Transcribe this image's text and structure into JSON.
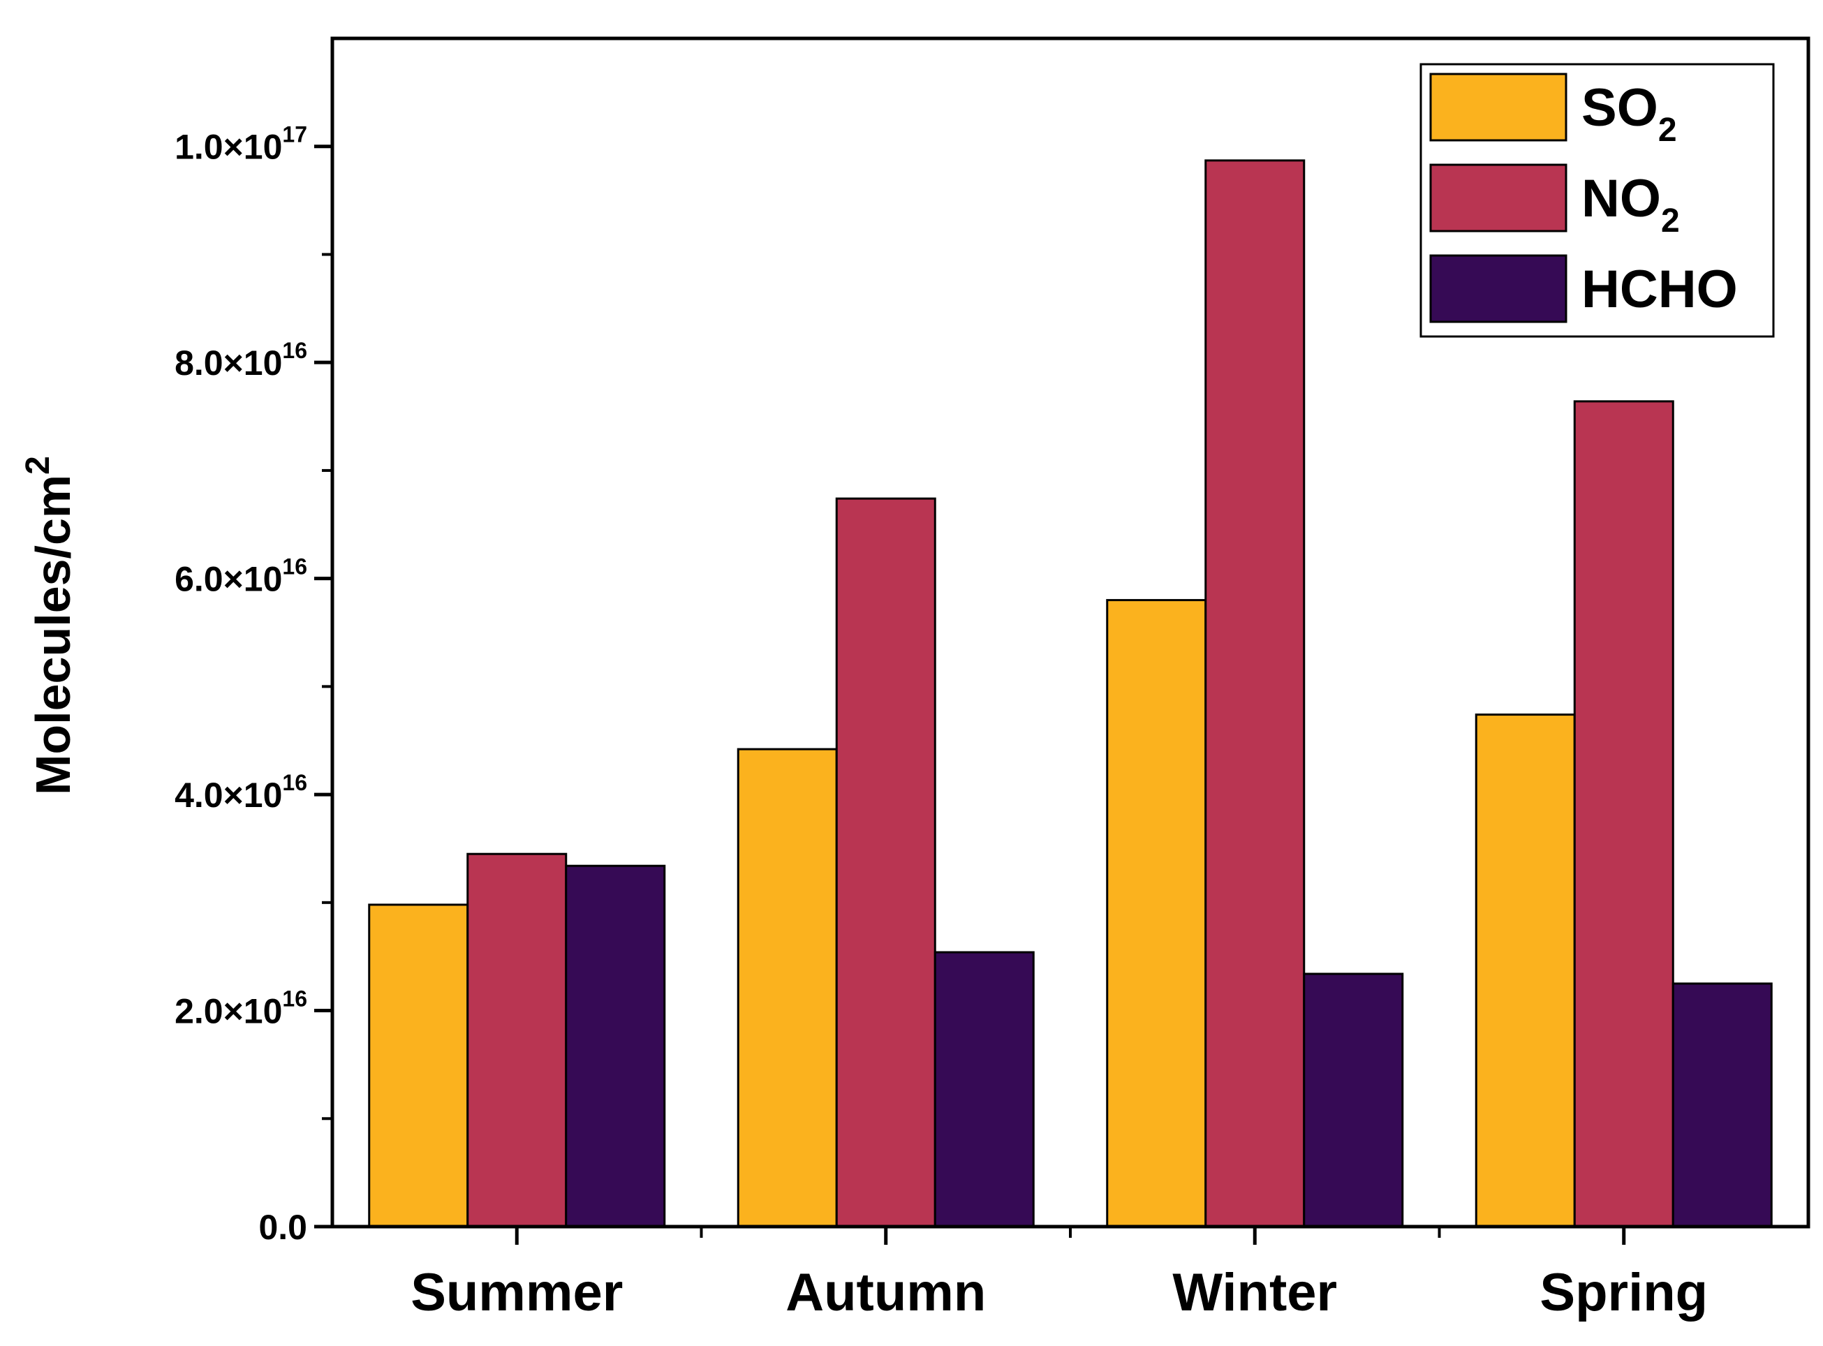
{
  "chart_data": {
    "type": "bar",
    "title": "",
    "xlabel": "",
    "ylabel": "Molecules/cm",
    "ylabel_superscript": "2",
    "categories": [
      "Summer",
      "Autumn",
      "Winter",
      "Spring"
    ],
    "series": [
      {
        "name": "SO",
        "name_subscript": "2",
        "color": "#FBB21E",
        "values": [
          2.98e+16,
          4.42e+16,
          5.8e+16,
          4.74e+16
        ]
      },
      {
        "name": "NO",
        "name_subscript": "2",
        "color": "#B93552",
        "values": [
          3.45e+16,
          6.74e+16,
          9.87e+16,
          7.64e+16
        ]
      },
      {
        "name": "HCHO",
        "name_subscript": "",
        "color": "#360A55",
        "values": [
          3.34e+16,
          2.54e+16,
          2.34e+16,
          2.25e+16
        ]
      }
    ],
    "ylim": [
      0,
      1.1e+17
    ],
    "yticks": [
      {
        "value": 0,
        "mantissa": "0.0",
        "exponent": ""
      },
      {
        "value": 2e+16,
        "mantissa": "2.0×10",
        "exponent": "16"
      },
      {
        "value": 4e+16,
        "mantissa": "4.0×10",
        "exponent": "16"
      },
      {
        "value": 6e+16,
        "mantissa": "6.0×10",
        "exponent": "16"
      },
      {
        "value": 8e+16,
        "mantissa": "8.0×10",
        "exponent": "16"
      },
      {
        "value": 1e+17,
        "mantissa": "1.0×10",
        "exponent": "17"
      }
    ],
    "legend_position": "top-right",
    "grid": false
  }
}
